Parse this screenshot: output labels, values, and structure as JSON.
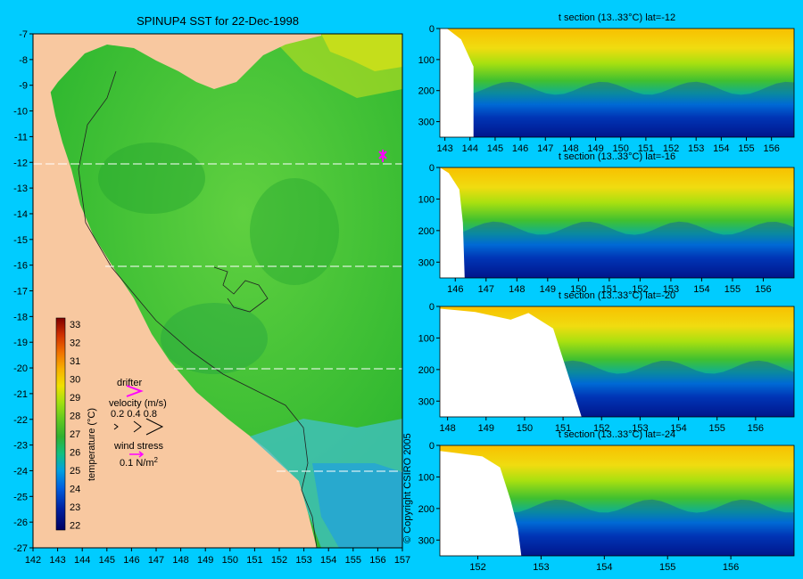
{
  "map": {
    "title": "SPINUP4 SST for 22-Dec-1998",
    "lon_ticks": [
      "142",
      "143",
      "144",
      "145",
      "146",
      "147",
      "148",
      "149",
      "150",
      "151",
      "152",
      "153",
      "154",
      "155",
      "156",
      "157"
    ],
    "lat_ticks": [
      "-7",
      "-8",
      "-9",
      "-10",
      "-11",
      "-12",
      "-13",
      "-14",
      "-15",
      "-16",
      "-17",
      "-18",
      "-19",
      "-20",
      "-21",
      "-22",
      "-23",
      "-24",
      "-25",
      "-26",
      "-27"
    ],
    "colorbar_label": "temperature (°C)",
    "colorbar_ticks": [
      "33",
      "32",
      "31",
      "30",
      "29",
      "28",
      "27",
      "26",
      "25",
      "24",
      "23",
      "22"
    ],
    "drifter_label": "drifter",
    "velocity_label": "velocity (m/s)",
    "velocity_values": "0.2 0.4 0.8",
    "wind_label": "wind stress",
    "wind_value": "0.1 N/m",
    "wind_exponent": "2",
    "copyright": "© Copyright CSIRO 2005",
    "section_lats": [
      -12,
      -16,
      -20,
      -24
    ]
  },
  "colors": {
    "background": "#00ccff",
    "land": "#f8c8a0",
    "sea_warm": "#44cc33",
    "arrow": "#ff00ff"
  },
  "chart_data": [
    {
      "type": "heatmap",
      "title": "t section (13..33°C) lat=-12",
      "xlim": [
        142.8,
        156.9
      ],
      "ylim": [
        0,
        350
      ],
      "xticks": [
        "143",
        "144",
        "145",
        "146",
        "147",
        "148",
        "149",
        "150",
        "151",
        "152",
        "153",
        "154",
        "155",
        "156"
      ],
      "yticks": [
        "0",
        "100",
        "200",
        "300"
      ],
      "coast_lon": 144.0
    },
    {
      "type": "heatmap",
      "title": "t section (13..33°C) lat=-16",
      "xlim": [
        145.5,
        157.0
      ],
      "ylim": [
        0,
        350
      ],
      "xticks": [
        "146",
        "147",
        "148",
        "149",
        "150",
        "151",
        "152",
        "153",
        "154",
        "155",
        "156"
      ],
      "yticks": [
        "0",
        "100",
        "200",
        "300"
      ],
      "coast_lon": 145.9
    },
    {
      "type": "heatmap",
      "title": "t section (13..33°C) lat=-20",
      "xlim": [
        147.8,
        157.0
      ],
      "ylim": [
        0,
        350
      ],
      "xticks": [
        "148",
        "149",
        "150",
        "151",
        "152",
        "153",
        "154",
        "155",
        "156"
      ],
      "yticks": [
        "0",
        "100",
        "200",
        "300"
      ],
      "coast_lon": 151.2
    },
    {
      "type": "heatmap",
      "title": "t section (13..33°C) lat=-24",
      "xlim": [
        151.4,
        157.0
      ],
      "ylim": [
        0,
        350
      ],
      "xticks": [
        "152",
        "153",
        "154",
        "155",
        "156"
      ],
      "yticks": [
        "0",
        "100",
        "200",
        "300"
      ],
      "coast_lon": 152.8
    }
  ]
}
